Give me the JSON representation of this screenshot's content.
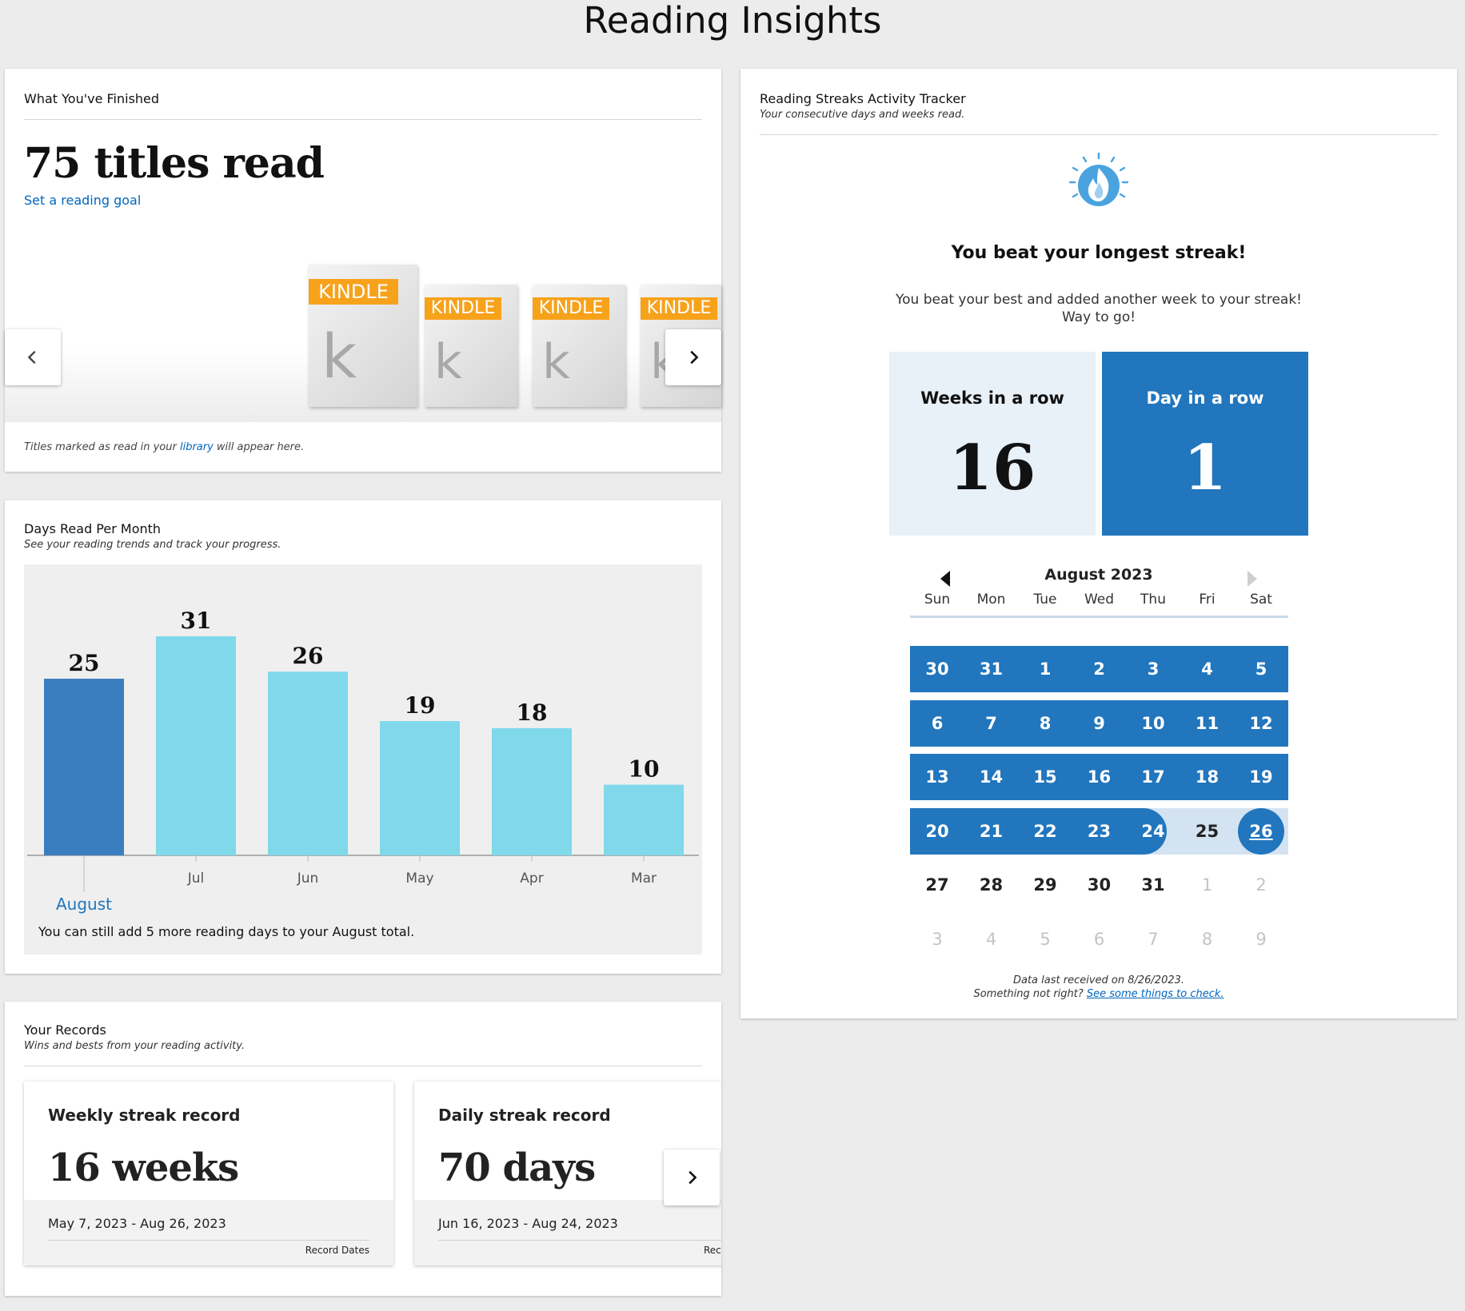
{
  "page": {
    "title": "Reading Insights"
  },
  "colors": {
    "accent": "#2176bd",
    "link": "#0066c0",
    "kindle_badge": "#f7a21b",
    "bar_current": "#3a7ebf",
    "bar_other": "#7fd9ea"
  },
  "finished": {
    "title": "What You've Finished",
    "count_text": "75 titles read",
    "goal_link": "Set a reading goal",
    "books": [
      "KINDLE",
      "KINDLE",
      "KINDLE",
      "KINDLE"
    ],
    "book_letter": "k",
    "note_prefix": "Titles marked as read in your ",
    "note_link": "library",
    "note_suffix": " will appear here.",
    "prev_icon": "chevron-left-icon",
    "next_icon": "chevron-right-icon"
  },
  "days_read": {
    "title": "Days Read Per Month",
    "subtitle": "See your reading trends and track your progress.",
    "note": "You can still add 5 more reading days to your August total."
  },
  "chart_data": {
    "type": "bar",
    "categories": [
      "August",
      "Jul",
      "Jun",
      "May",
      "Apr",
      "Mar"
    ],
    "values": [
      25,
      31,
      26,
      19,
      18,
      10
    ],
    "highlight_index": 0,
    "ylim": [
      0,
      31
    ],
    "grid": false,
    "xlabel": "",
    "ylabel": "",
    "title": "Days Read Per Month"
  },
  "records": {
    "title": "Your Records",
    "subtitle": "Wins and bests from your reading activity.",
    "items": [
      {
        "title": "Weekly streak record",
        "value": "16 weeks",
        "dates": "May 7, 2023 - Aug 26, 2023",
        "caption": "Record Dates"
      },
      {
        "title": "Daily streak record",
        "value": "70 days",
        "dates": "Jun 16, 2023 - Aug 24, 2023",
        "caption": "Record Dates"
      }
    ],
    "next_icon": "chevron-right-icon"
  },
  "streaks": {
    "title": "Reading Streaks Activity Tracker",
    "subtitle": "Your consecutive days and weeks read.",
    "icon": "flame-icon",
    "headline": "You beat your longest streak!",
    "message": "You beat your best and added another week to your streak! Way to go!",
    "weeks_label": "Weeks in a row",
    "weeks_value": "16",
    "days_label": "Day in a row",
    "days_value": "1",
    "calendar": {
      "month": "August 2023",
      "weekdays": [
        "Sun",
        "Mon",
        "Tue",
        "Wed",
        "Thu",
        "Fri",
        "Sat"
      ],
      "weeks": [
        [
          "30",
          "31",
          "1",
          "2",
          "3",
          "4",
          "5"
        ],
        [
          "6",
          "7",
          "8",
          "9",
          "10",
          "11",
          "12"
        ],
        [
          "13",
          "14",
          "15",
          "16",
          "17",
          "18",
          "19"
        ],
        [
          "20",
          "21",
          "22",
          "23",
          "24",
          "25",
          "26"
        ],
        [
          "27",
          "28",
          "29",
          "30",
          "31",
          "1",
          "2"
        ],
        [
          "3",
          "4",
          "5",
          "6",
          "7",
          "8",
          "9"
        ]
      ],
      "today": "26"
    },
    "footer_line1": "Data last received on 8/26/2023.",
    "footer_prefix": "Something not right? ",
    "footer_link": "See some things to check."
  }
}
